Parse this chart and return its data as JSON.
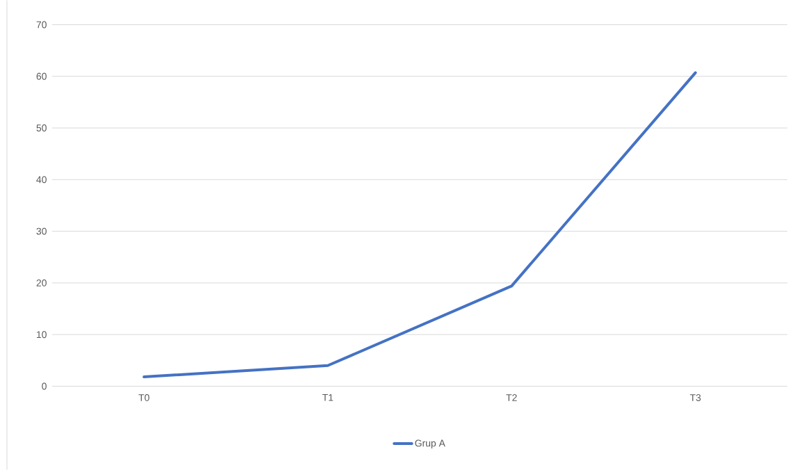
{
  "chart_data": {
    "type": "line",
    "categories": [
      "T0",
      "T1",
      "T2",
      "T3"
    ],
    "series": [
      {
        "name": "Grup A",
        "color": "#4472c4",
        "values": [
          1.8,
          4.0,
          19.4,
          60.7
        ]
      }
    ],
    "ylim": [
      0,
      70
    ],
    "yticks": [
      0,
      10,
      20,
      30,
      40,
      50,
      60,
      70
    ],
    "grid": "y",
    "legend": "bottom",
    "marker": "none",
    "line_style": "solid"
  }
}
